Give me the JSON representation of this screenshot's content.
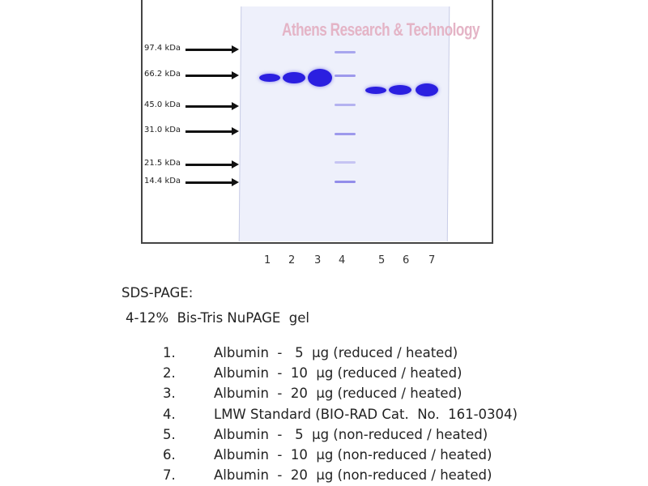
{
  "gel": {
    "watermark": "Athens Research & Technology",
    "markers": [
      "97.4 kDa",
      "66.2 kDa",
      "45.0 kDa",
      "31.0 kDa",
      "21.5 kDa",
      "14.4 kDa"
    ],
    "lane_numbers": [
      "1",
      "2",
      "3",
      "4",
      "5",
      "6",
      "7"
    ],
    "band_color": "#2b1fe0",
    "ladder_color": "#7a74e6"
  },
  "caption": {
    "method": "SDS-PAGE:",
    "gel_type": "4-12%  Bis-Tris NuPAGE  gel",
    "lanes": [
      {
        "num": "1.",
        "desc": "Albumin  -   5  µg (reduced / heated)"
      },
      {
        "num": "2.",
        "desc": "Albumin  -  10  µg (reduced / heated)"
      },
      {
        "num": "3.",
        "desc": "Albumin  -  20  µg (reduced / heated)"
      },
      {
        "num": "4.",
        "desc": "LMW Standard (BIO-RAD Cat.  No.  161-0304)"
      },
      {
        "num": "5.",
        "desc": "Albumin  -   5  µg (non-reduced / heated)"
      },
      {
        "num": "6.",
        "desc": "Albumin  -  10  µg (non-reduced / heated)"
      },
      {
        "num": "7.",
        "desc": "Albumin  -  20  µg (non-reduced / heated)"
      }
    ]
  }
}
